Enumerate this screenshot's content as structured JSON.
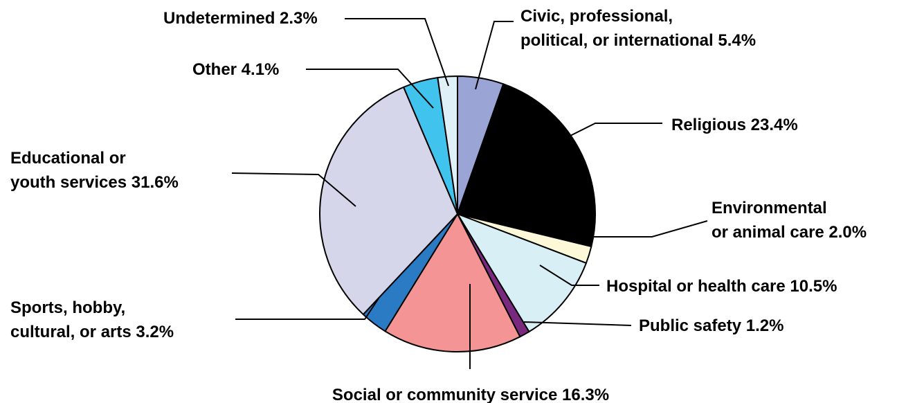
{
  "chart_data": {
    "type": "pie",
    "start": "12 o'clock",
    "direction": "clockwise",
    "slices": [
      {
        "label_lines": [
          "Civic, professional,",
          "political, or international  5.4%"
        ],
        "name": "Civic, professional, political, or international",
        "value": 5.4,
        "color": "#9aa5d6"
      },
      {
        "label_lines": [
          "Religious  23.4%"
        ],
        "name": "Religious",
        "value": 23.4,
        "color": "#000000"
      },
      {
        "label_lines": [
          "Environmental",
          "or animal care  2.0%"
        ],
        "name": "Environmental or animal care",
        "value": 2.0,
        "color": "#fdf8d8"
      },
      {
        "label_lines": [
          "Hospital or health care  10.5%"
        ],
        "name": "Hospital or health care",
        "value": 10.5,
        "color": "#d9eff6"
      },
      {
        "label_lines": [
          "Public safety  1.2%"
        ],
        "name": "Public safety",
        "value": 1.2,
        "color": "#7a2a7e"
      },
      {
        "label_lines": [
          "Social or community service  16.3%"
        ],
        "name": "Social or community service",
        "value": 16.3,
        "color": "#f49494"
      },
      {
        "label_lines": [
          "Sports, hobby,",
          "cultural, or arts  3.2%"
        ],
        "name": "Sports, hobby, cultural, or arts",
        "value": 3.2,
        "color": "#2b7bc4"
      },
      {
        "label_lines": [
          "Educational or",
          "youth services  31.6%"
        ],
        "name": "Educational or youth services",
        "value": 31.6,
        "color": "#d6d6ea"
      },
      {
        "label_lines": [
          "Other  4.1%"
        ],
        "name": "Other",
        "value": 4.1,
        "color": "#40c4ee"
      },
      {
        "label_lines": [
          "Undetermined 2.3%"
        ],
        "name": "Undetermined",
        "value": 2.3,
        "color": "#dff0f8"
      }
    ]
  }
}
